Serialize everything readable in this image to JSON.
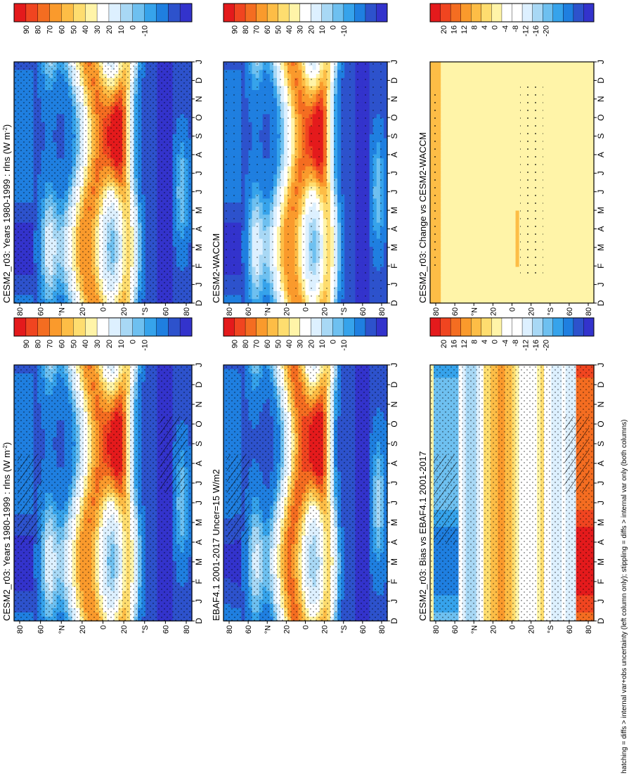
{
  "figure": {
    "footnote": "hatching = diffs > internal var+obs uncertainty (left column only); stippling = diffs > internal var only (both columns)"
  },
  "chart_data": [
    {
      "type": "heatmap",
      "id": "p1",
      "title": "CESM2_r03: Years 1980-1999 : rlns (W m",
      "title_sup": "-2",
      "title_end": ")",
      "x": [
        "D",
        "J",
        "F",
        "M",
        "A",
        "M",
        "J",
        "J",
        "A",
        "S",
        "O",
        "N",
        "D",
        "J"
      ],
      "y_ticks": [
        "80",
        "60",
        "°N",
        "20",
        "0",
        "20",
        "°S",
        "60",
        "80"
      ],
      "colorbar": {
        "labels": [
          "90",
          "80",
          "70",
          "60",
          "50",
          "40",
          "30",
          "20",
          "10",
          "0",
          "-10"
        ]
      },
      "stippling": true,
      "hatching": true
    },
    {
      "type": "heatmap",
      "id": "p2",
      "title": "CESM2_r03: Years 1980-1999 : rlns (W m",
      "title_sup": "-2",
      "title_end": ")",
      "x": [
        "D",
        "J",
        "F",
        "M",
        "A",
        "M",
        "J",
        "J",
        "A",
        "S",
        "O",
        "N",
        "D",
        "J"
      ],
      "y_ticks": [
        "80",
        "60",
        "°N",
        "20",
        "0",
        "20",
        "°S",
        "60",
        "80"
      ],
      "colorbar": {
        "labels": [
          "90",
          "80",
          "70",
          "60",
          "50",
          "40",
          "30",
          "20",
          "10",
          "0",
          "-10"
        ]
      },
      "stippling": true,
      "hatching": false
    },
    {
      "type": "heatmap",
      "id": "p3",
      "title": "EBAF4.1 2001-2017 Uncer=15 W/m2",
      "x": [
        "D",
        "J",
        "F",
        "M",
        "A",
        "M",
        "J",
        "J",
        "A",
        "S",
        "O",
        "N",
        "D",
        "J"
      ],
      "y_ticks": [
        "80",
        "60",
        "°N",
        "20",
        "0",
        "20",
        "°S",
        "60",
        "80"
      ],
      "colorbar": {
        "labels": [
          "90",
          "80",
          "70",
          "60",
          "50",
          "40",
          "30",
          "20",
          "10",
          "0",
          "-10"
        ]
      },
      "stippling": true,
      "hatching": true
    },
    {
      "type": "heatmap",
      "id": "p4",
      "title": "CESM2-WACCM",
      "x": [
        "D",
        "J",
        "F",
        "M",
        "A",
        "M",
        "J",
        "J",
        "A",
        "S",
        "O",
        "N",
        "D",
        "J"
      ],
      "y_ticks": [
        "80",
        "60",
        "°N",
        "20",
        "0",
        "20",
        "°S",
        "60",
        "80"
      ],
      "colorbar": {
        "labels": [
          "90",
          "80",
          "70",
          "60",
          "50",
          "40",
          "30",
          "20",
          "10",
          "0",
          "-10"
        ]
      },
      "stippling": true,
      "hatching": false
    },
    {
      "type": "heatmap",
      "id": "p5",
      "title": "CESM2_r03: Bias vs EBAF4.1 2001-2017",
      "x": [
        "D",
        "J",
        "F",
        "M",
        "A",
        "M",
        "J",
        "J",
        "A",
        "S",
        "O",
        "N",
        "D",
        "J"
      ],
      "y_ticks": [
        "80",
        "60",
        "°N",
        "20",
        "0",
        "20",
        "°S",
        "60",
        "80"
      ],
      "colorbar": {
        "labels": [
          "20",
          "16",
          "12",
          "8",
          "4",
          "0",
          "-4",
          "-8",
          "-12",
          "-16",
          "-20"
        ]
      },
      "stippling": true,
      "hatching": true
    },
    {
      "type": "heatmap",
      "id": "p6",
      "title": "CESM2_r03: Change vs CESM2-WACCM",
      "x": [
        "D",
        "J",
        "F",
        "M",
        "A",
        "M",
        "J",
        "J",
        "A",
        "S",
        "O",
        "N",
        "D",
        "J"
      ],
      "y_ticks": [
        "80",
        "60",
        "°N",
        "20",
        "0",
        "20",
        "°S",
        "60",
        "80"
      ],
      "colorbar": {
        "labels": [
          "20",
          "16",
          "12",
          "8",
          "4",
          "0",
          "-4",
          "-8",
          "-12",
          "-16",
          "-20"
        ]
      },
      "stippling": true,
      "hatching": false
    }
  ],
  "colors": {
    "abs_bar": [
      "#e41a1c",
      "#f04520",
      "#f46d21",
      "#fa9a2c",
      "#fdbd46",
      "#fedd6f",
      "#fff4a8",
      "#ffffff",
      "#ddf0ff",
      "#a8d8f5",
      "#6ec0f0",
      "#36a3eb",
      "#1f7fe0",
      "#2d52cc",
      "#3333cc"
    ],
    "diff_bar": [
      "#e41a1c",
      "#f04520",
      "#f46d21",
      "#fa9a2c",
      "#fdbd46",
      "#fedd6f",
      "#fff4a8",
      "#ffffff",
      "#ffffff",
      "#ddf0ff",
      "#a8d8f5",
      "#6ec0f0",
      "#36a3eb",
      "#1f7fe0",
      "#2d52cc",
      "#3333cc"
    ]
  }
}
